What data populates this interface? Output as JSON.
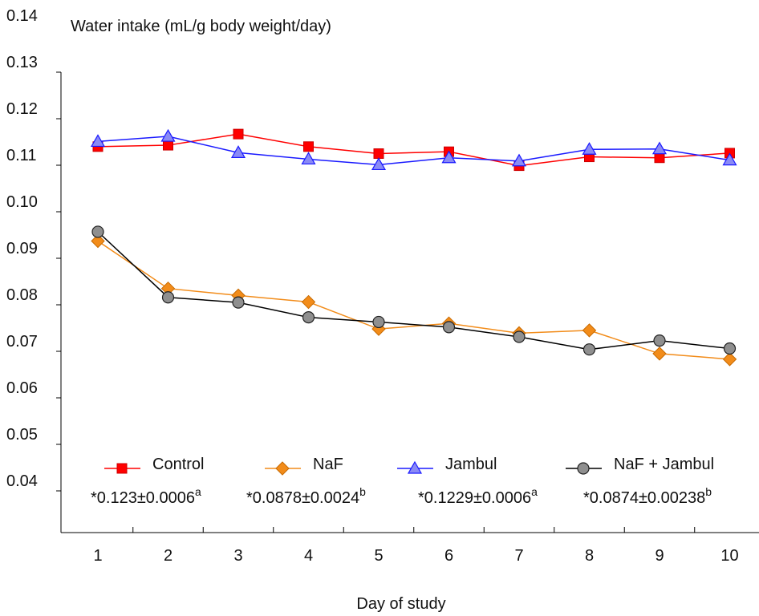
{
  "chart_data": {
    "type": "line",
    "ylabel": "Water intake (mL/g body weight/day)",
    "xlabel": "Day of study",
    "ylim": [
      0.03,
      0.14
    ],
    "yticks": [
      "0.14",
      "0.13",
      "0.12",
      "0.11",
      "0.10",
      "0.09",
      "0.08",
      "0.07",
      "0.06",
      "0.05",
      "0.04"
    ],
    "x": [
      "1",
      "2",
      "3",
      "4",
      "5",
      "6",
      "7",
      "8",
      "9",
      "10"
    ],
    "series": [
      {
        "name": "Control",
        "color": "#ff0000",
        "marker": "square",
        "values": [
          0.114,
          0.1143,
          0.1167,
          0.114,
          0.1125,
          0.1129,
          0.1099,
          0.1118,
          0.1116,
          0.1126
        ],
        "summary_value": "*0.123±0.0006",
        "summary_sup": "a"
      },
      {
        "name": "NaF",
        "color": "#f28c1a",
        "marker": "diamond",
        "values": [
          0.0937,
          0.0835,
          0.082,
          0.0806,
          0.0748,
          0.076,
          0.0739,
          0.0745,
          0.0695,
          0.0683
        ],
        "summary_value": "*0.0878±0.0024",
        "summary_sup": "b"
      },
      {
        "name": "Jambul",
        "color": "#1a1aff",
        "marker": "triangle",
        "values": [
          0.1151,
          0.1162,
          0.1127,
          0.1113,
          0.1101,
          0.1116,
          0.1109,
          0.1134,
          0.1135,
          0.1111
        ],
        "summary_value": "*0.1229±0.0006",
        "summary_sup": "a"
      },
      {
        "name": "NaF + Jambul",
        "color": "#000000",
        "marker": "circle",
        "values": [
          0.0957,
          0.0816,
          0.0805,
          0.0773,
          0.0763,
          0.0752,
          0.0731,
          0.0704,
          0.0723,
          0.0706
        ],
        "summary_value": "*0.0874±0.00238",
        "summary_sup": "b"
      }
    ]
  }
}
